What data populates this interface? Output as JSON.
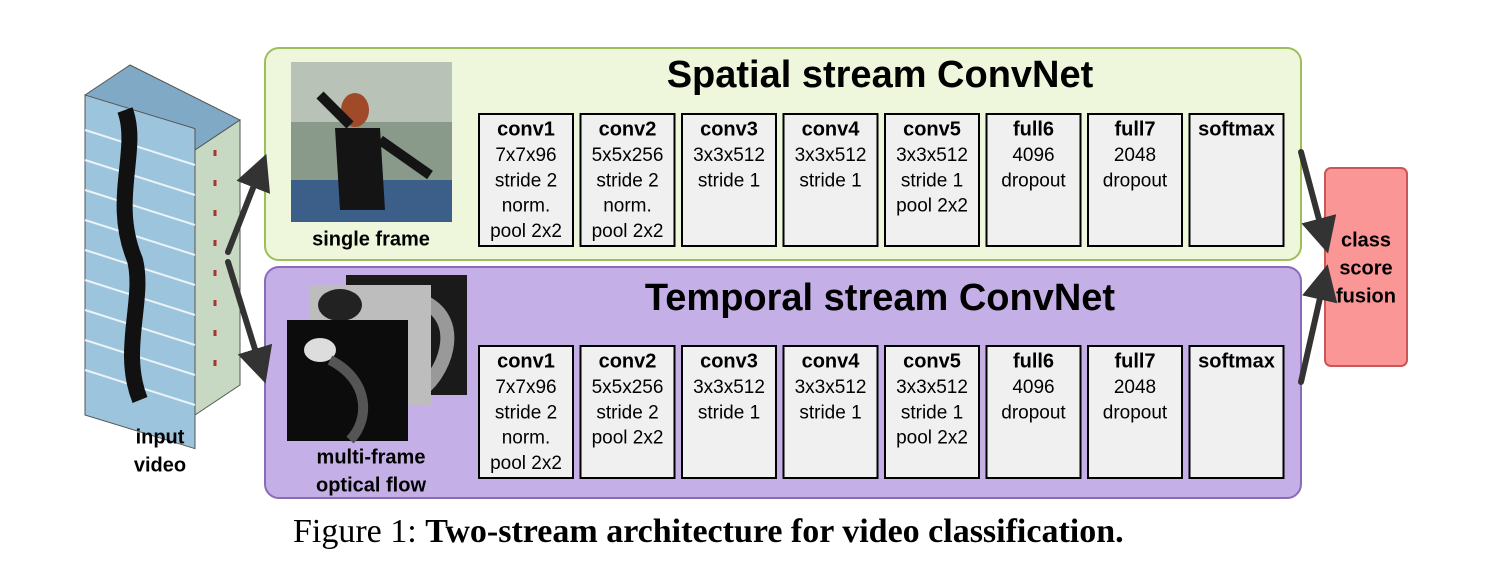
{
  "input_video": {
    "label_lines": [
      "input",
      "video"
    ]
  },
  "spatial_stream": {
    "title": "Spatial stream ConvNet",
    "image_caption_lines": [
      "single frame"
    ],
    "layers": [
      {
        "name": "conv1",
        "details": [
          "7x7x96",
          "stride 2",
          "norm.",
          "pool 2x2"
        ]
      },
      {
        "name": "conv2",
        "details": [
          "5x5x256",
          "stride 2",
          "norm.",
          "pool 2x2"
        ]
      },
      {
        "name": "conv3",
        "details": [
          "3x3x512",
          "stride 1"
        ]
      },
      {
        "name": "conv4",
        "details": [
          "3x3x512",
          "stride 1"
        ]
      },
      {
        "name": "conv5",
        "details": [
          "3x3x512",
          "stride 1",
          "pool 2x2"
        ]
      },
      {
        "name": "full6",
        "details": [
          "4096",
          "dropout"
        ]
      },
      {
        "name": "full7",
        "details": [
          "2048",
          "dropout"
        ]
      },
      {
        "name": "softmax",
        "details": []
      }
    ]
  },
  "temporal_stream": {
    "title": "Temporal stream ConvNet",
    "image_caption_lines": [
      "multi-frame",
      "optical flow"
    ],
    "layers": [
      {
        "name": "conv1",
        "details": [
          "7x7x96",
          "stride 2",
          "norm.",
          "pool 2x2"
        ]
      },
      {
        "name": "conv2",
        "details": [
          "5x5x256",
          "stride 2",
          "pool 2x2"
        ]
      },
      {
        "name": "conv3",
        "details": [
          "3x3x512",
          "stride 1"
        ]
      },
      {
        "name": "conv4",
        "details": [
          "3x3x512",
          "stride 1"
        ]
      },
      {
        "name": "conv5",
        "details": [
          "3x3x512",
          "stride 1",
          "pool 2x2"
        ]
      },
      {
        "name": "full6",
        "details": [
          "4096",
          "dropout"
        ]
      },
      {
        "name": "full7",
        "details": [
          "2048",
          "dropout"
        ]
      },
      {
        "name": "softmax",
        "details": []
      }
    ]
  },
  "fusion": {
    "label_lines": [
      "class",
      "score",
      "fusion"
    ]
  },
  "caption": {
    "label": "Figure 1:",
    "text": "Two-stream architecture for video classification."
  }
}
